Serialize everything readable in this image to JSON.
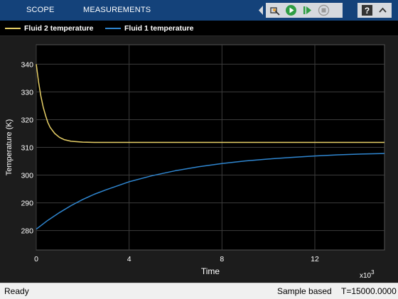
{
  "toolstrip": {
    "tabs": [
      "SCOPE",
      "MEASUREMENTS"
    ]
  },
  "legend": [
    {
      "label": "Fluid 2 temperature",
      "color": "#e8d067"
    },
    {
      "label": "Fluid 1 temperature",
      "color": "#2f86d0"
    }
  ],
  "status": {
    "ready": "Ready",
    "sample_mode": "Sample based",
    "time": "T=15000.0000"
  },
  "chart_data": {
    "type": "line",
    "xlabel": "Time",
    "ylabel": "Temperature (K)",
    "x_exponent_label": "x10",
    "x_exponent": "3",
    "xlim": [
      0,
      15000
    ],
    "ylim": [
      273,
      347
    ],
    "x_ticks": [
      0,
      4000,
      8000,
      12000
    ],
    "x_tick_labels": [
      "0",
      "4",
      "8",
      "12"
    ],
    "y_ticks": [
      280,
      290,
      300,
      310,
      320,
      330,
      340
    ],
    "grid": true,
    "legend_position": "top",
    "series": [
      {
        "name": "Fluid 2 temperature",
        "color": "#e8d067",
        "x": [
          0,
          100,
          200,
          300,
          400,
          500,
          600,
          800,
          1000,
          1200,
          1500,
          2000,
          2500,
          3000,
          4000,
          6000,
          8000,
          10000,
          12000,
          15000
        ],
        "y": [
          340,
          333.5,
          328.5,
          324.5,
          321.5,
          319,
          317.2,
          315,
          313.6,
          312.8,
          312.2,
          311.9,
          311.8,
          311.8,
          311.8,
          311.8,
          311.8,
          311.8,
          311.8,
          311.8
        ]
      },
      {
        "name": "Fluid 1 temperature",
        "color": "#2f86d0",
        "x": [
          0,
          500,
          1000,
          1500,
          2000,
          2500,
          3000,
          4000,
          5000,
          6000,
          7000,
          8000,
          9000,
          10000,
          11000,
          12000,
          13000,
          14000,
          15000
        ],
        "y": [
          280.5,
          283.7,
          286.5,
          289,
          291.2,
          293.1,
          294.7,
          297.6,
          299.8,
          301.6,
          303,
          304.2,
          305.1,
          305.8,
          306.4,
          306.9,
          307.3,
          307.6,
          307.8
        ]
      }
    ]
  }
}
